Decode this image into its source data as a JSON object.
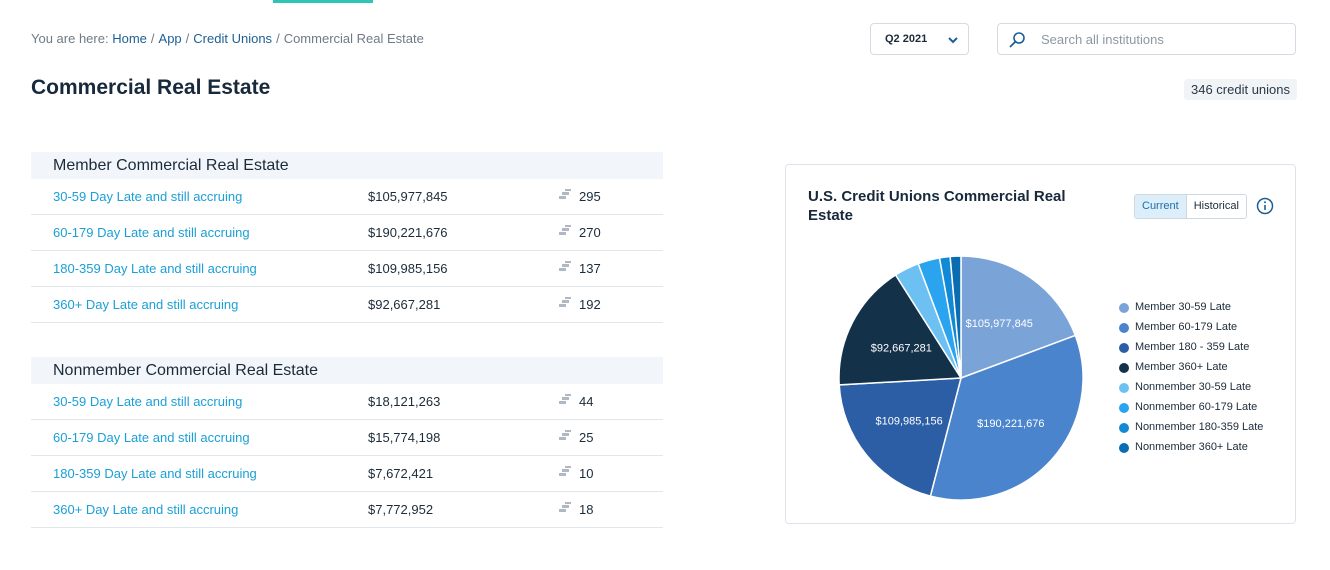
{
  "breadcrumb": {
    "prefix": "You are here:",
    "items": [
      "Home",
      "App",
      "Credit Unions"
    ],
    "current": "Commercial Real Estate"
  },
  "quarter_select": {
    "value": "Q2 2021"
  },
  "search": {
    "placeholder": "Search all institutions"
  },
  "page": {
    "title": "Commercial Real Estate",
    "count_badge": "346 credit unions"
  },
  "member_section": {
    "title": "Member Commercial Real Estate",
    "rows": [
      {
        "label": "30-59 Day Late and still accruing",
        "amount": "$105,977,845",
        "count": "295"
      },
      {
        "label": "60-179 Day Late and still accruing",
        "amount": "$190,221,676",
        "count": "270"
      },
      {
        "label": "180-359 Day Late and still accruing",
        "amount": "$109,985,156",
        "count": "137"
      },
      {
        "label": "360+ Day Late and still accruing",
        "amount": "$92,667,281",
        "count": "192"
      }
    ]
  },
  "nonmember_section": {
    "title": "Nonmember Commercial Real Estate",
    "rows": [
      {
        "label": "30-59 Day Late and still accruing",
        "amount": "$18,121,263",
        "count": "44"
      },
      {
        "label": "60-179 Day Late and still accruing",
        "amount": "$15,774,198",
        "count": "25"
      },
      {
        "label": "180-359 Day Late and still accruing",
        "amount": "$7,672,421",
        "count": "10"
      },
      {
        "label": "360+ Day Late and still accruing",
        "amount": "$7,772,952",
        "count": "18"
      }
    ]
  },
  "chart_card": {
    "toggle": {
      "current": "Current",
      "historical": "Historical"
    }
  },
  "chart_data": {
    "type": "pie",
    "title": "U.S. Credit Unions Commercial Real Estate",
    "slices": [
      {
        "name": "Member 30-59 Late",
        "value": 105977845,
        "label": "$105,977,845",
        "color": "#7aa3d8"
      },
      {
        "name": "Member 60-179 Late",
        "value": 190221676,
        "label": "$190,221,676",
        "color": "#4a84cc"
      },
      {
        "name": "Member 180 - 359 Late",
        "value": 109985156,
        "label": "$109,985,156",
        "color": "#2b5ea5"
      },
      {
        "name": "Member 360+ Late",
        "value": 92667281,
        "label": "$92,667,281",
        "color": "#14314a"
      },
      {
        "name": "Nonmember 30-59 Late",
        "value": 18121263,
        "label": "",
        "color": "#6cc1f2"
      },
      {
        "name": "Nonmember 60-179 Late",
        "value": 15774198,
        "label": "",
        "color": "#2aa4ef"
      },
      {
        "name": "Nonmember 180-359 Late",
        "value": 7672421,
        "label": "",
        "color": "#1289d6"
      },
      {
        "name": "Nonmember 360+ Late",
        "value": 7772952,
        "label": "",
        "color": "#0a6cb1"
      }
    ],
    "legend_position": "right"
  }
}
